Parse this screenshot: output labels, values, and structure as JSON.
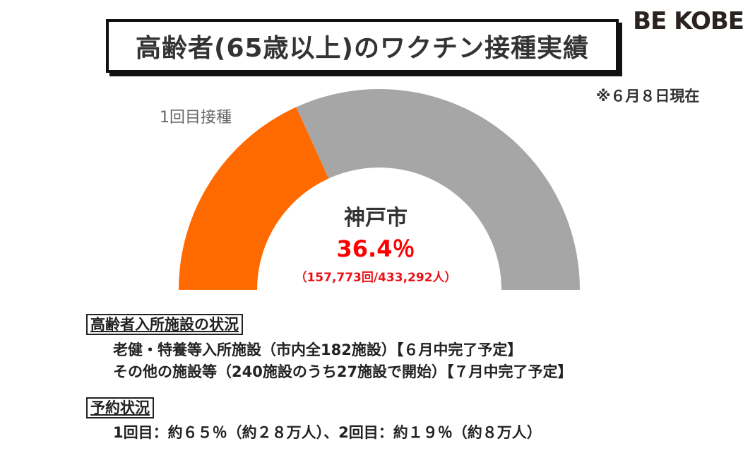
{
  "logo": "BE KOBE",
  "title": "高齢者(65歳以上)のワクチン接種実績",
  "as_of": "※６月８日現在",
  "chart_data": {
    "type": "gauge",
    "series_label": "1回目接種",
    "center_label": "神戸市",
    "value_percent": 36.4,
    "value_text": "36.4％",
    "counts_text": "（157,773回/433,292人）",
    "vaccinated": 157773,
    "population": 433292,
    "colors": {
      "filled": "#ff6a00",
      "remaining": "#a6a6a6"
    }
  },
  "facilities": {
    "heading": "高齢者入所施設の状況",
    "lines": [
      "老健・特養等入所施設（市内全182施設）【６月中完了予定】",
      "その他の施設等（240施設のうち27施設で開始）【７月中完了予定】"
    ]
  },
  "reservations": {
    "heading": "予約状況",
    "line": "1回目：約６５％（約２８万人）、2回目：約１９％（約８万人）"
  }
}
